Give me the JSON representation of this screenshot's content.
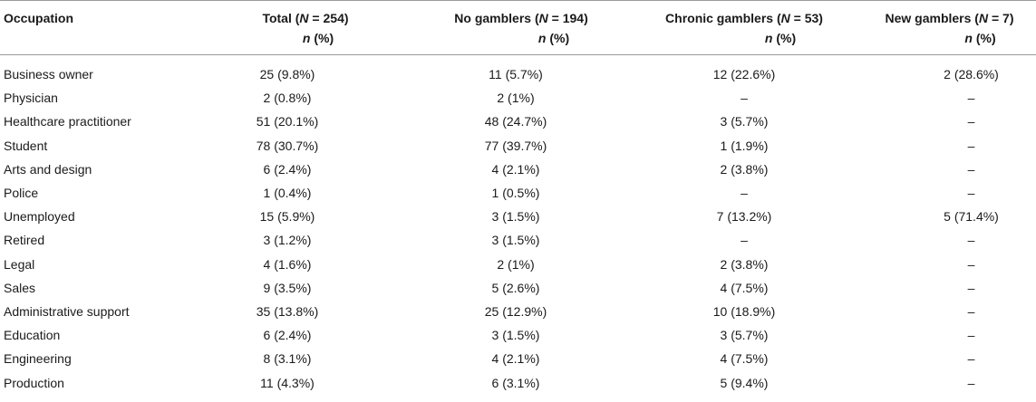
{
  "table": {
    "headers": {
      "occupation": "Occupation",
      "total": {
        "pre": "Total (",
        "n": "N",
        "post": " = 254)"
      },
      "no_gamblers": {
        "pre": "No gamblers (",
        "n": "N",
        "post": " = 194)"
      },
      "chronic_gamblers": {
        "pre": "Chronic gamblers (",
        "n": "N",
        "post": " = 53)"
      },
      "new_gamblers": {
        "pre": "New gamblers (",
        "n": "N",
        "post": " = 7)"
      },
      "sub_n": "n",
      "sub_pct": " (%)"
    },
    "rows": [
      {
        "occupation": "Business owner",
        "total": "25 (9.8%)",
        "no": "11 (5.7%)",
        "chronic": "12 (22.6%)",
        "new": "2 (28.6%)"
      },
      {
        "occupation": "Physician",
        "total": "2 (0.8%)",
        "no": "2 (1%)",
        "chronic": "–",
        "new": "–"
      },
      {
        "occupation": "Healthcare practitioner",
        "total": "51 (20.1%)",
        "no": "48 (24.7%)",
        "chronic": "3 (5.7%)",
        "new": "–"
      },
      {
        "occupation": "Student",
        "total": "78 (30.7%)",
        "no": "77 (39.7%)",
        "chronic": "1 (1.9%)",
        "new": "–"
      },
      {
        "occupation": "Arts and design",
        "total": "6 (2.4%)",
        "no": "4 (2.1%)",
        "chronic": "2 (3.8%)",
        "new": "–"
      },
      {
        "occupation": "Police",
        "total": "1 (0.4%)",
        "no": "1 (0.5%)",
        "chronic": "–",
        "new": "–"
      },
      {
        "occupation": "Unemployed",
        "total": "15 (5.9%)",
        "no": "3 (1.5%)",
        "chronic": "7 (13.2%)",
        "new": "5 (71.4%)"
      },
      {
        "occupation": "Retired",
        "total": "3 (1.2%)",
        "no": "3 (1.5%)",
        "chronic": "–",
        "new": "–"
      },
      {
        "occupation": "Legal",
        "total": "4 (1.6%)",
        "no": "2 (1%)",
        "chronic": "2 (3.8%)",
        "new": "–"
      },
      {
        "occupation": "Sales",
        "total": "9 (3.5%)",
        "no": "5 (2.6%)",
        "chronic": "4 (7.5%)",
        "new": "–"
      },
      {
        "occupation": "Administrative support",
        "total": "35 (13.8%)",
        "no": "25 (12.9%)",
        "chronic": "10 (18.9%)",
        "new": "–"
      },
      {
        "occupation": "Education",
        "total": "6 (2.4%)",
        "no": "3 (1.5%)",
        "chronic": "3 (5.7%)",
        "new": "–"
      },
      {
        "occupation": "Engineering",
        "total": "8 (3.1%)",
        "no": "4 (2.1%)",
        "chronic": "4 (7.5%)",
        "new": "–"
      },
      {
        "occupation": "Production",
        "total": "11 (4.3%)",
        "no": "6 (3.1%)",
        "chronic": "5 (9.4%)",
        "new": "–"
      }
    ]
  }
}
